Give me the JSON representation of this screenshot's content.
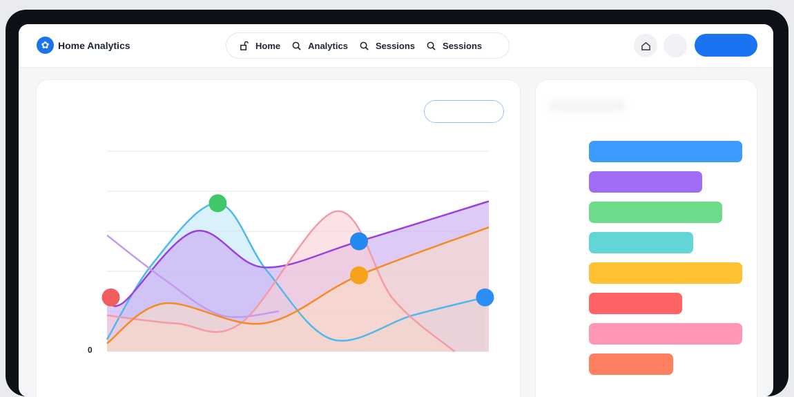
{
  "header": {
    "brand": "Home Analytics",
    "logo_icon": "lotus-icon",
    "nav": [
      {
        "label": "Home",
        "icon": "lock-open-icon"
      },
      {
        "label": "Analytics",
        "icon": "search-icon"
      },
      {
        "label": "Sessions",
        "icon": "search-icon"
      },
      {
        "label": "Sessions",
        "icon": "search-icon"
      }
    ],
    "actions": [
      {
        "icon": "home-icon"
      },
      {
        "icon": "avatar"
      }
    ],
    "accent": "#1a73f0"
  },
  "chart_data": {
    "type": "area",
    "y_tick_labels": [
      "0"
    ],
    "grid": true,
    "ylim": [
      0,
      5
    ],
    "xlim": [
      0,
      10
    ],
    "series": [
      {
        "color": "#4fb8ec",
        "fill": "#bfe8f7",
        "points": [
          [
            0,
            0.3
          ],
          [
            1.2,
            2.2
          ],
          [
            2.9,
            3.7
          ],
          [
            4.2,
            2.0
          ],
          [
            5.9,
            0.3
          ],
          [
            8,
            0.9
          ],
          [
            9.9,
            1.35
          ]
        ]
      },
      {
        "color": "#9b3fe0",
        "fill": "#c8a6f2",
        "points": [
          [
            0,
            1.5
          ],
          [
            0.4,
            1.2
          ],
          [
            2.3,
            3.0
          ],
          [
            4.1,
            2.1
          ],
          [
            6.6,
            2.75
          ],
          [
            10,
            3.75
          ]
        ]
      },
      {
        "color": "#c49bec",
        "fill": "none",
        "points": [
          [
            0,
            2.9
          ],
          [
            1.5,
            1.8
          ],
          [
            3,
            0.9
          ],
          [
            4.5,
            1.0
          ]
        ]
      },
      {
        "color": "#f59aa6",
        "fill": "#f9cfd3",
        "points": [
          [
            0,
            0.9
          ],
          [
            1.8,
            0.7
          ],
          [
            3.5,
            0.7
          ],
          [
            6,
            3.5
          ],
          [
            7.5,
            1.3
          ],
          [
            9.1,
            0
          ]
        ]
      },
      {
        "color": "#f68a23",
        "fill": "#fadcc4",
        "points": [
          [
            0,
            0.2
          ],
          [
            1.5,
            1.2
          ],
          [
            4.1,
            0.7
          ],
          [
            6.6,
            1.9
          ],
          [
            10,
            3.1
          ]
        ]
      }
    ],
    "markers": [
      {
        "x": 0.1,
        "y": 1.35,
        "color": "#f25c5c"
      },
      {
        "x": 2.9,
        "y": 3.7,
        "color": "#3fc768"
      },
      {
        "x": 6.6,
        "y": 2.75,
        "color": "#2388f0"
      },
      {
        "x": 6.6,
        "y": 1.9,
        "color": "#f7a21b"
      },
      {
        "x": 9.9,
        "y": 1.35,
        "color": "#2b8ef2"
      }
    ]
  },
  "legend_bars": [
    {
      "color": "#3d9bff",
      "value": 1.0
    },
    {
      "color": "#a06cf5",
      "value": 0.74
    },
    {
      "color": "#6edb8a",
      "value": 0.87
    },
    {
      "color": "#62d6d6",
      "value": 0.68
    },
    {
      "color": "#ffc233",
      "value": 1.0
    },
    {
      "color": "#ff6363",
      "value": 0.61
    },
    {
      "color": "#ff96b4",
      "value": 1.0
    },
    {
      "color": "#ff8060",
      "value": 0.55
    }
  ]
}
